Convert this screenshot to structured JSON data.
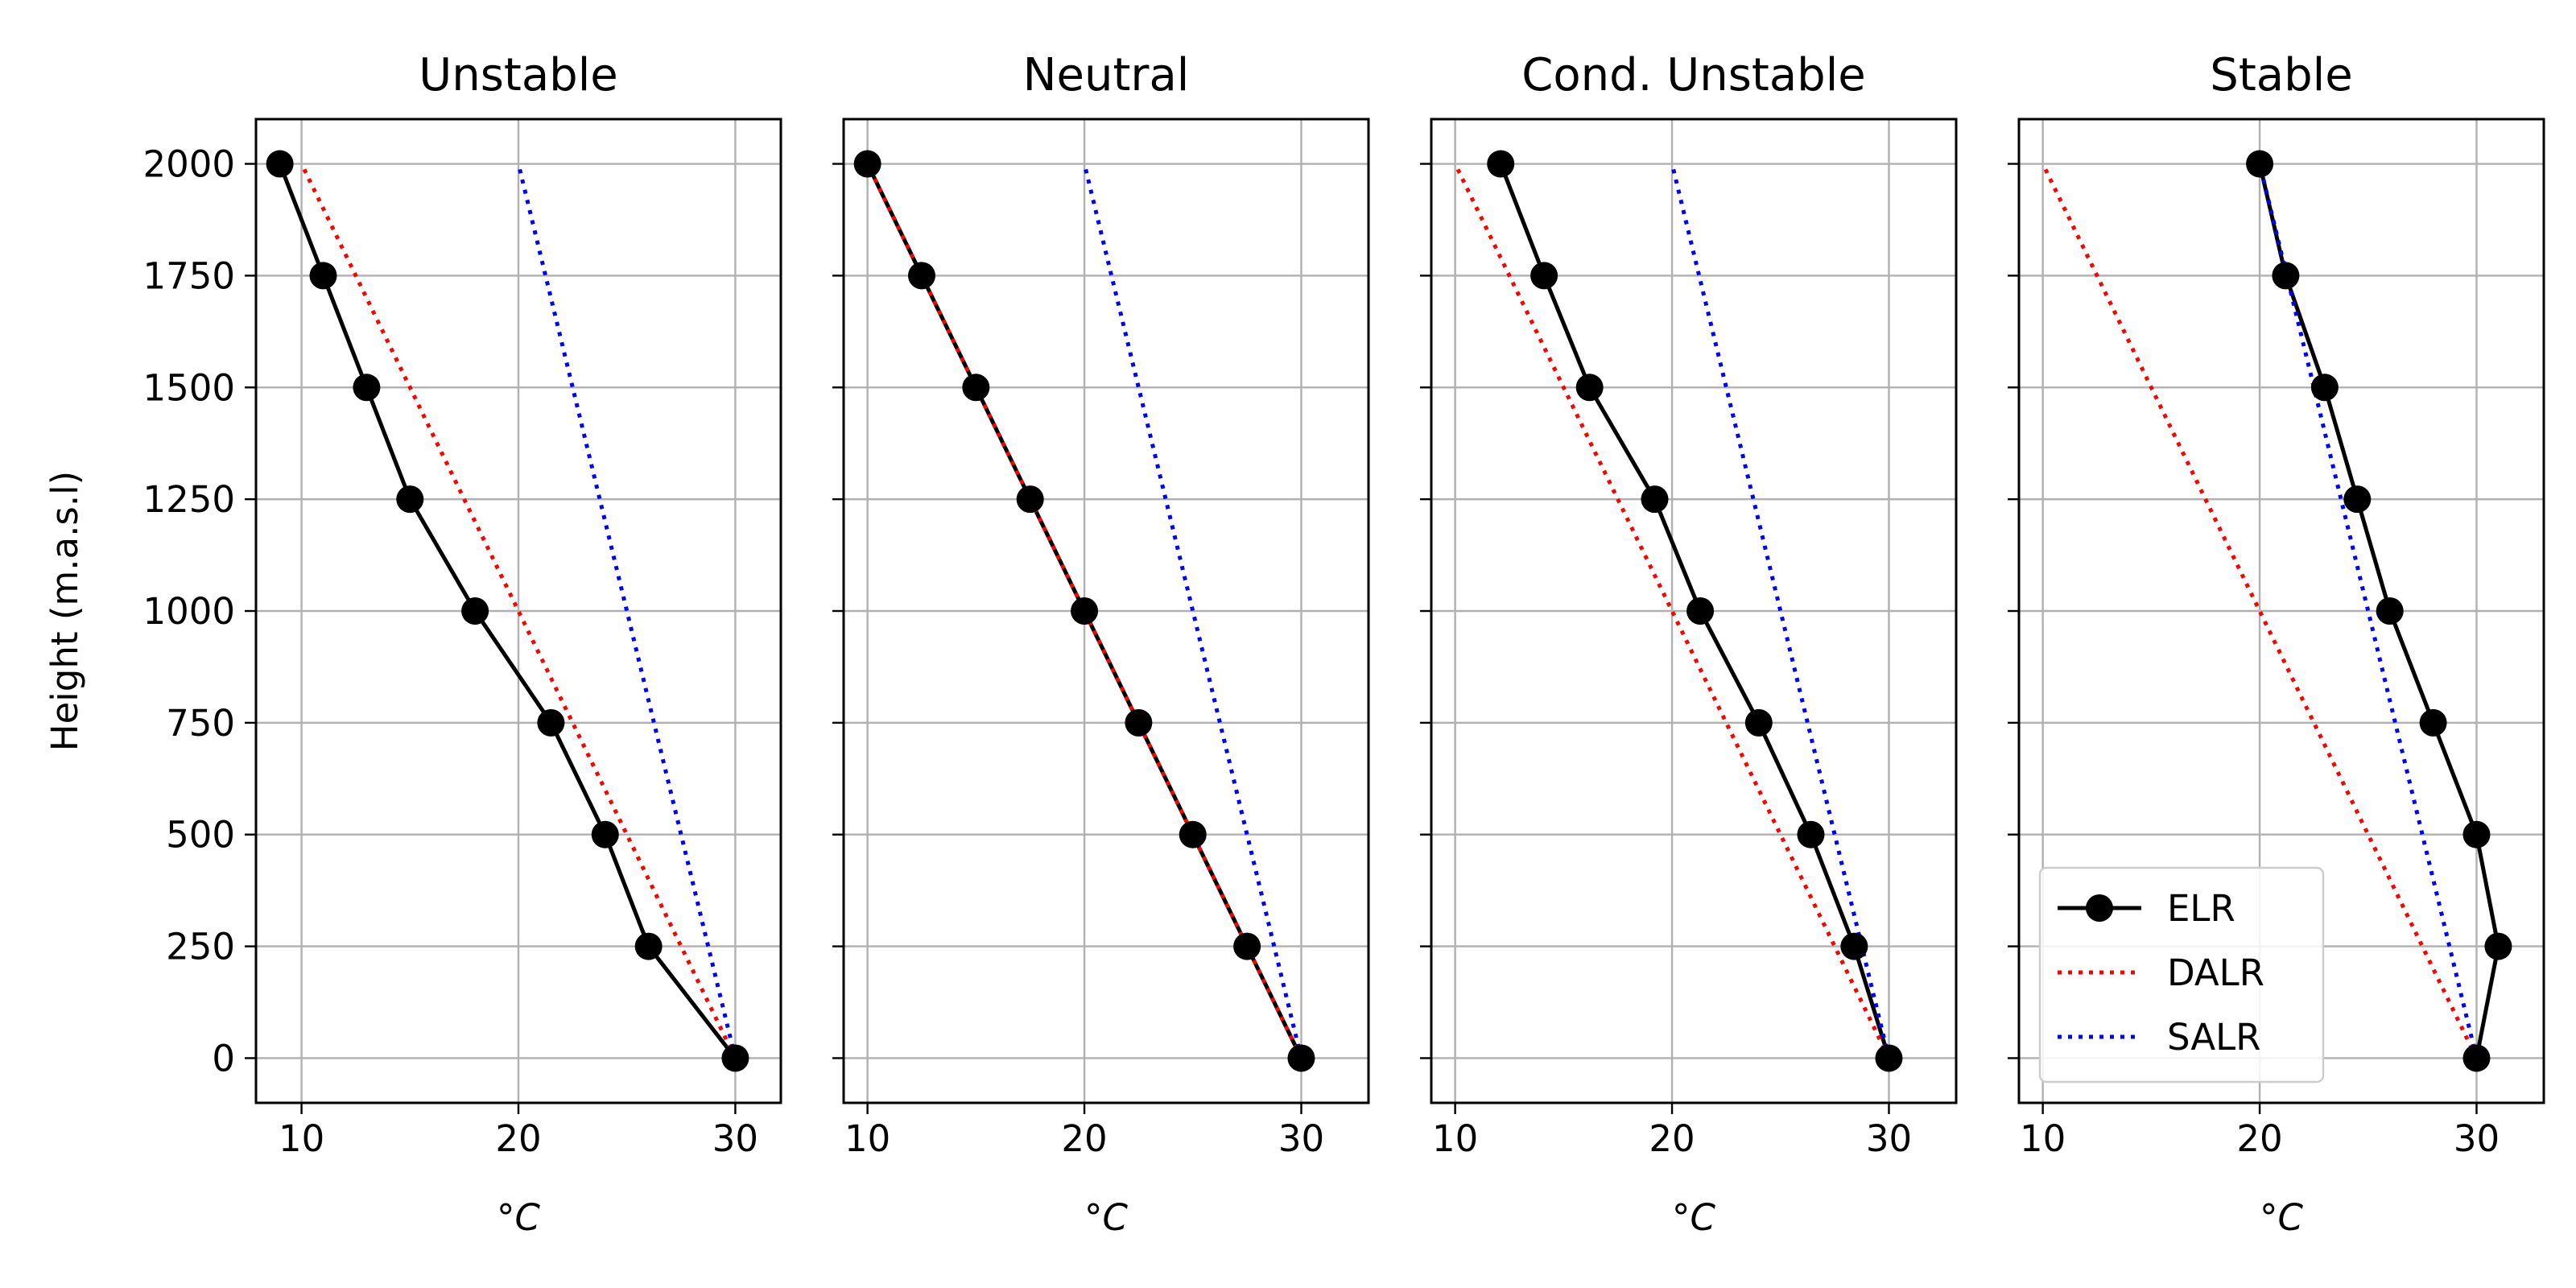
{
  "chart_data": [
    {
      "type": "line",
      "title": "Unstable",
      "xlabel": "°C",
      "ylabel": "Height (m.a.s.l)",
      "xlim": [
        7.9,
        32.1
      ],
      "ylim": [
        -100,
        2100
      ],
      "xticks": [
        10,
        20,
        30
      ],
      "yticks": [
        0,
        250,
        500,
        750,
        1000,
        1250,
        1500,
        1750,
        2000
      ],
      "grid": true,
      "series": [
        {
          "name": "ELR",
          "style": "solid-marker",
          "color": "#000000",
          "x": [
            30,
            26,
            24,
            21.5,
            18,
            15,
            13,
            11,
            9
          ],
          "y": [
            0,
            250,
            500,
            750,
            1000,
            1250,
            1500,
            1750,
            2000
          ]
        },
        {
          "name": "DALR",
          "style": "dotted",
          "color": "#ff0000",
          "x": [
            30,
            10
          ],
          "y": [
            0,
            2000
          ]
        },
        {
          "name": "SALR",
          "style": "dotted",
          "color": "#0000ff",
          "x": [
            30,
            20
          ],
          "y": [
            0,
            2000
          ]
        }
      ]
    },
    {
      "type": "line",
      "title": "Neutral",
      "xlabel": "°C",
      "ylabel": "",
      "xlim": [
        8.9,
        33.1
      ],
      "ylim": [
        -100,
        2100
      ],
      "xticks": [
        10,
        20,
        30
      ],
      "yticks": [
        0,
        250,
        500,
        750,
        1000,
        1250,
        1500,
        1750,
        2000
      ],
      "grid": true,
      "series": [
        {
          "name": "ELR",
          "style": "solid-marker",
          "color": "#000000",
          "x": [
            30,
            27.5,
            25,
            22.5,
            20,
            17.5,
            15,
            12.5,
            10
          ],
          "y": [
            0,
            250,
            500,
            750,
            1000,
            1250,
            1500,
            1750,
            2000
          ]
        },
        {
          "name": "DALR",
          "style": "dotted",
          "color": "#ff0000",
          "x": [
            30,
            10
          ],
          "y": [
            0,
            2000
          ]
        },
        {
          "name": "SALR",
          "style": "dotted",
          "color": "#0000ff",
          "x": [
            30,
            20
          ],
          "y": [
            0,
            2000
          ]
        }
      ]
    },
    {
      "type": "line",
      "title": "Cond. Unstable",
      "xlabel": "°C",
      "ylabel": "",
      "xlim": [
        8.9,
        33.1
      ],
      "ylim": [
        -100,
        2100
      ],
      "xticks": [
        10,
        20,
        30
      ],
      "yticks": [
        0,
        250,
        500,
        750,
        1000,
        1250,
        1500,
        1750,
        2000
      ],
      "grid": true,
      "series": [
        {
          "name": "ELR",
          "style": "solid-marker",
          "color": "#000000",
          "x": [
            30,
            28.4,
            26.4,
            24,
            21.3,
            19.2,
            16.2,
            14.1,
            12.1
          ],
          "y": [
            0,
            250,
            500,
            750,
            1000,
            1250,
            1500,
            1750,
            2000
          ]
        },
        {
          "name": "DALR",
          "style": "dotted",
          "color": "#ff0000",
          "x": [
            30,
            10
          ],
          "y": [
            0,
            2000
          ]
        },
        {
          "name": "SALR",
          "style": "dotted",
          "color": "#0000ff",
          "x": [
            30,
            20
          ],
          "y": [
            0,
            2000
          ]
        }
      ]
    },
    {
      "type": "line",
      "title": "Stable",
      "xlabel": "°C",
      "ylabel": "",
      "xlim": [
        8.9,
        33.1
      ],
      "ylim": [
        -100,
        2100
      ],
      "xticks": [
        10,
        20,
        30
      ],
      "yticks": [
        0,
        250,
        500,
        750,
        1000,
        1250,
        1500,
        1750,
        2000
      ],
      "grid": true,
      "legend": "lower-left",
      "legend_entries": [
        "ELR",
        "DALR",
        "SALR"
      ],
      "series": [
        {
          "name": "ELR",
          "style": "solid-marker",
          "color": "#000000",
          "x": [
            30,
            31,
            30,
            28,
            26,
            24.5,
            23,
            21.2,
            20
          ],
          "y": [
            0,
            250,
            500,
            750,
            1000,
            1250,
            1500,
            1750,
            2000
          ]
        },
        {
          "name": "DALR",
          "style": "dotted",
          "color": "#ff0000",
          "x": [
            30,
            10
          ],
          "y": [
            0,
            2000
          ]
        },
        {
          "name": "SALR",
          "style": "dotted",
          "color": "#0000ff",
          "x": [
            30,
            20
          ],
          "y": [
            0,
            2000
          ]
        }
      ]
    }
  ]
}
